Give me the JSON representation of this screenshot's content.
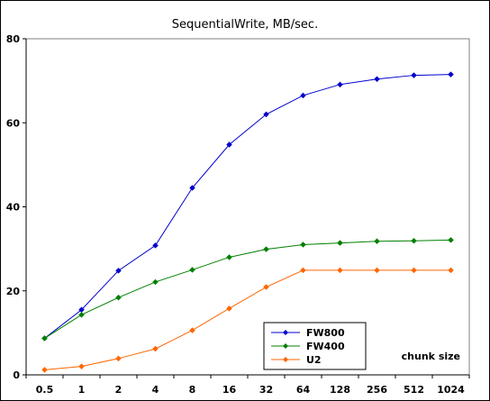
{
  "chart_data": {
    "type": "line",
    "title": "SequentialWrite, MB/sec.",
    "xlabel": "chunk size",
    "ylabel": "",
    "categories": [
      "0.5",
      "1",
      "2",
      "4",
      "8",
      "16",
      "32",
      "64",
      "128",
      "256",
      "512",
      "1024"
    ],
    "ylim": [
      0,
      80
    ],
    "yticks": [
      0,
      20,
      40,
      60,
      80
    ],
    "grid": "horizontal-dashed",
    "legend_position": "bottom-center-right",
    "series": [
      {
        "name": "FW800",
        "color": "#0000cc",
        "values": [
          8.7,
          15.5,
          24.8,
          30.8,
          44.5,
          54.8,
          62.0,
          66.5,
          69.1,
          70.4,
          71.3,
          71.5
        ]
      },
      {
        "name": "FW400",
        "color": "#008000",
        "values": [
          8.7,
          14.3,
          18.4,
          22.1,
          25.0,
          28.0,
          29.9,
          31.0,
          31.4,
          31.8,
          31.9,
          32.1
        ]
      },
      {
        "name": "U2",
        "color": "#ff6600",
        "values": [
          1.2,
          2.0,
          3.9,
          6.2,
          10.6,
          15.8,
          20.9,
          24.9,
          24.9,
          24.9,
          24.9,
          24.9
        ]
      }
    ]
  }
}
